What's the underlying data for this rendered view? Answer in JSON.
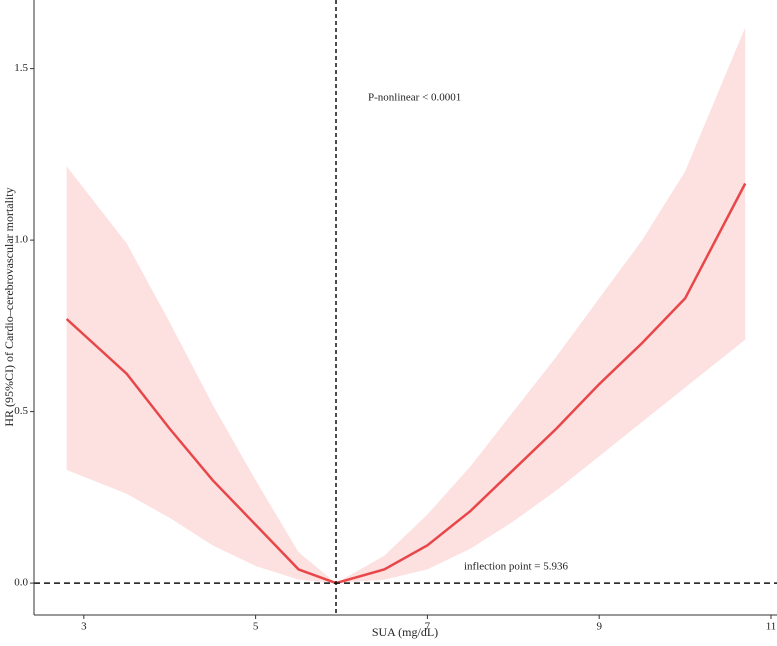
{
  "chart_data": {
    "type": "line",
    "x_label": "SUA (mg/dL)",
    "y_label": "HR (95%CI) of Cardio–cerebrovascular mortality",
    "annotation": "P-nonlinear < 0.0001",
    "inflection_label": "inflection point = 5.936",
    "x": [
      2.8,
      3.5,
      4.0,
      4.5,
      5.0,
      5.5,
      5.936,
      6.5,
      7.0,
      7.5,
      8.0,
      8.5,
      9.0,
      9.5,
      10.0,
      10.7
    ],
    "values": [
      0.77,
      0.61,
      0.45,
      0.3,
      0.17,
      0.04,
      0,
      0.04,
      0.11,
      0.21,
      0.33,
      0.45,
      0.58,
      0.7,
      0.83,
      1.165
    ],
    "lower": [
      0.33,
      0.26,
      0.19,
      0.11,
      0.05,
      0.01,
      0,
      0.01,
      0.04,
      0.1,
      0.18,
      0.27,
      0.37,
      0.47,
      0.57,
      0.71
    ],
    "upper": [
      1.215,
      0.99,
      0.76,
      0.52,
      0.3,
      0.09,
      0,
      0.08,
      0.2,
      0.34,
      0.5,
      0.66,
      0.83,
      1.0,
      1.2,
      1.62
    ],
    "color": "#e8474a",
    "band_color": "#fde0e0",
    "vline": 5.936,
    "hline": 0,
    "xlim": [
      2.42,
      11.07
    ],
    "ylim": [
      -0.093,
      1.7
    ],
    "xticks": [
      3,
      5,
      7,
      9,
      11
    ],
    "yticks": [
      {
        "value": 0,
        "label": "0.0"
      },
      {
        "value": 0.5,
        "label": "0.5"
      },
      {
        "value": 1,
        "label": "1.0"
      },
      {
        "value": 1.5,
        "label": "1.5"
      }
    ]
  }
}
